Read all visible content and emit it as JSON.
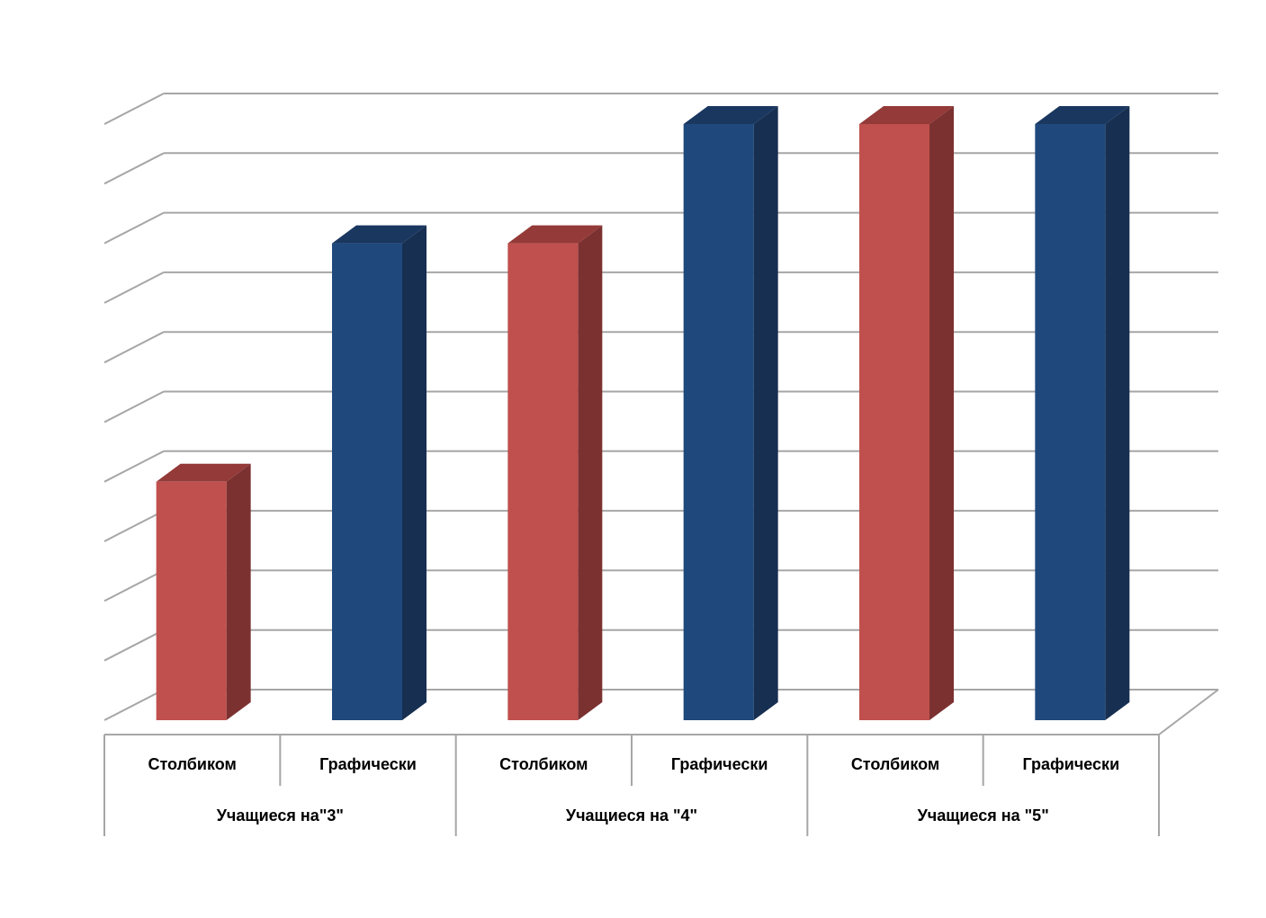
{
  "chart_data": {
    "type": "bar",
    "style": "3d-clustered",
    "ylim": [
      0,
      10
    ],
    "grid": true,
    "colors": {
      "red_front": "#C0504D",
      "red_side": "#7C3131",
      "red_top": "#943A38",
      "blue_front": "#1F497D",
      "blue_side": "#172F51",
      "blue_top": "#1A3760",
      "grid": "#A6A6A6"
    },
    "groups": [
      {
        "label": "Учащиеся на\"3\"",
        "bars": [
          {
            "label": "Столбиком",
            "value": 4,
            "color": "red"
          },
          {
            "label": "Графически",
            "value": 8,
            "color": "blue"
          }
        ]
      },
      {
        "label": "Учащиеся на \"4\"",
        "bars": [
          {
            "label": "Столбиком",
            "value": 8,
            "color": "red"
          },
          {
            "label": "Графически",
            "value": 10,
            "color": "blue"
          }
        ]
      },
      {
        "label": "Учащиеся на \"5\"",
        "bars": [
          {
            "label": "Столбиком",
            "value": 10,
            "color": "red"
          },
          {
            "label": "Графически",
            "value": 10,
            "color": "blue"
          }
        ]
      }
    ]
  }
}
